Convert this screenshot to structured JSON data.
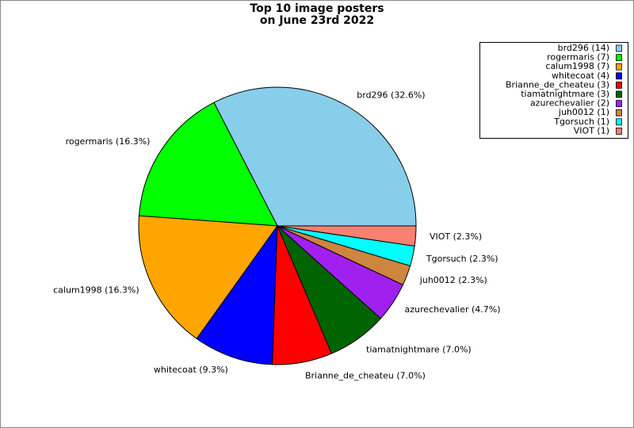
{
  "chart_data": {
    "type": "pie",
    "title": [
      "Top 10 image posters",
      "on June 23rd 2022"
    ],
    "categories": [
      "brd296",
      "rogermaris",
      "calum1998",
      "whitecoat",
      "Brianne_de_cheateu",
      "tiamatnightmare",
      "azurechevalier",
      "juh0012",
      "Tgorsuch",
      "VIOT"
    ],
    "values": [
      14,
      7,
      7,
      4,
      3,
      3,
      2,
      1,
      1,
      1
    ],
    "slice_labels": [
      "brd296 (32.6%)",
      "rogermaris (16.3%)",
      "calum1998 (16.3%)",
      "whitecoat (9.3%)",
      "Brianne_de_cheateu (7.0%)",
      "tiamatnightmare (7.0%)",
      "azurechevalier (4.7%)",
      "juh0012 (2.3%)",
      "Tgorsuch (2.3%)",
      "VIOT (2.3%)"
    ],
    "legend_labels": [
      "brd296 (14)",
      "rogermaris (7)",
      "calum1998 (7)",
      "whitecoat (4)",
      "Brianne_de_cheateu (3)",
      "tiamatnightmare (3)",
      "azurechevalier (2)",
      "juh0012 (1)",
      "Tgorsuch (1)",
      "VIOT (1)"
    ],
    "colors": [
      "#87ceeb",
      "#00ff00",
      "#ffa500",
      "#0000ff",
      "#ff0000",
      "#006400",
      "#a020f0",
      "#cd853f",
      "#00ffff",
      "#fa8072"
    ],
    "legend": "upper right"
  }
}
